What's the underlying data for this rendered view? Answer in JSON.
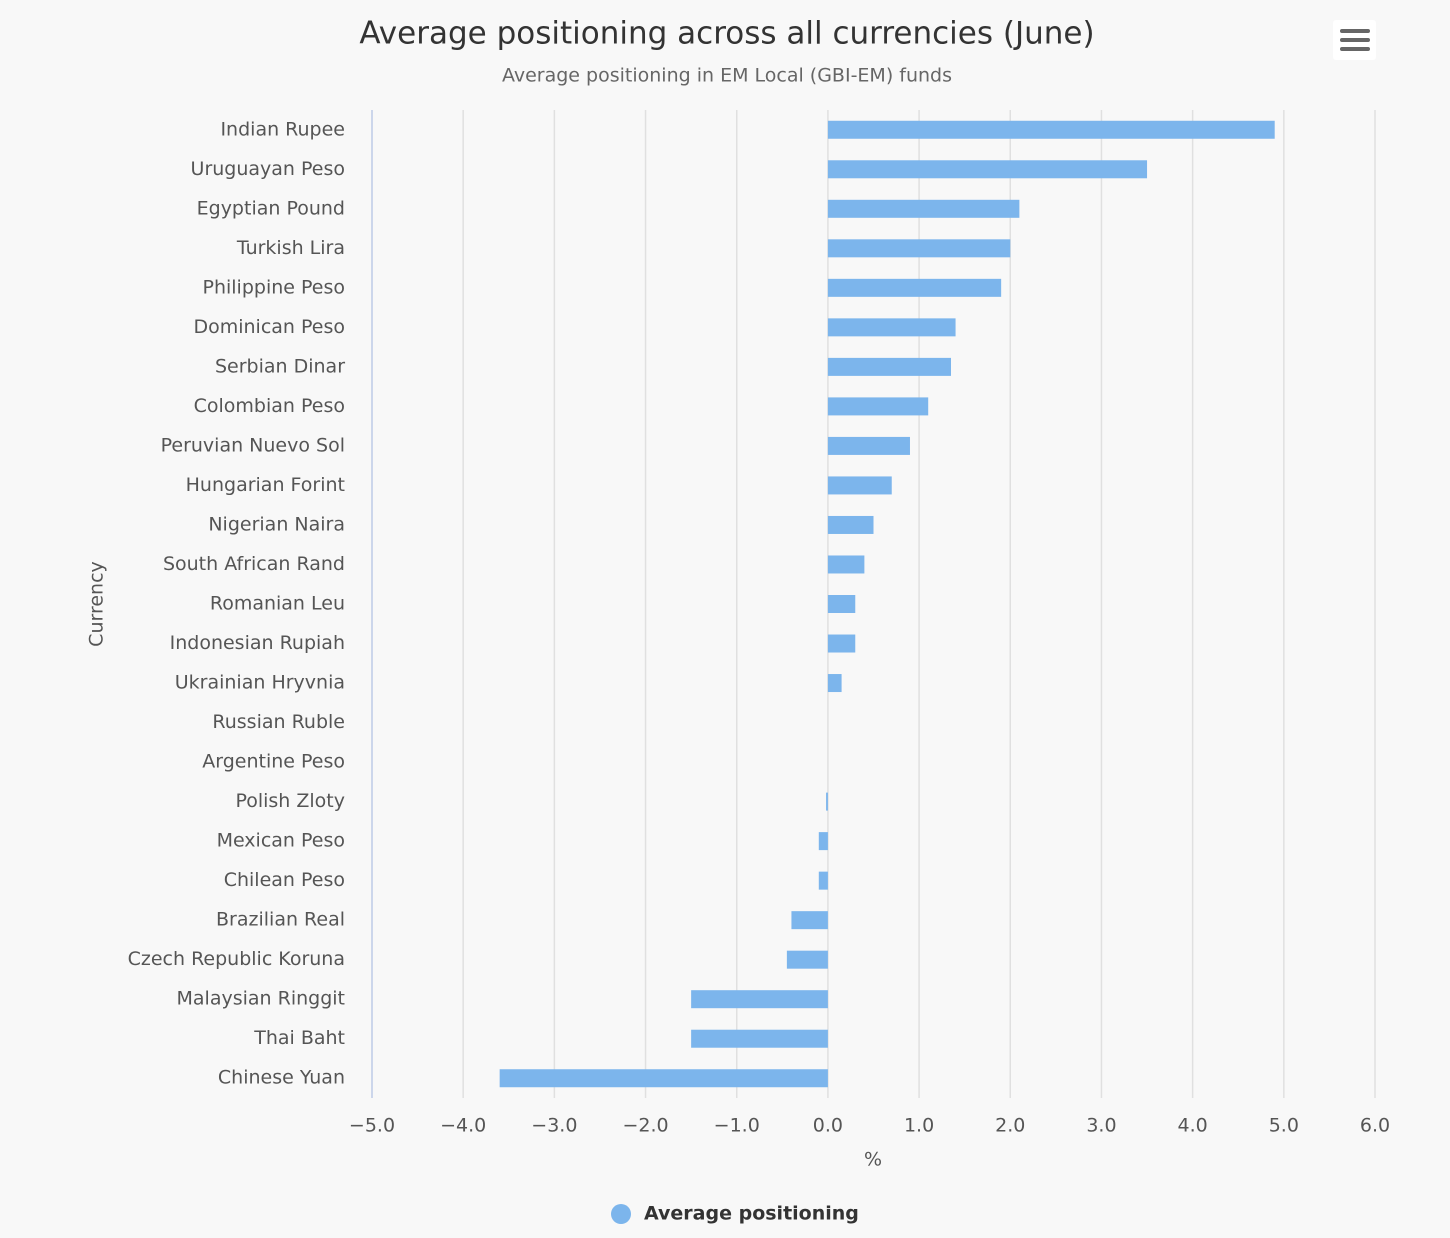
{
  "chart_data": {
    "type": "bar",
    "orientation": "horizontal",
    "title": "Average positioning across all currencies (June)",
    "subtitle": "Average positioning in EM Local (GBI-EM) funds",
    "x_label": "%",
    "y_label": "Currency",
    "categories": [
      "Indian Rupee",
      "Uruguayan Peso",
      "Egyptian Pound",
      "Turkish Lira",
      "Philippine Peso",
      "Dominican Peso",
      "Serbian Dinar",
      "Colombian Peso",
      "Peruvian Nuevo Sol",
      "Hungarian Forint",
      "Nigerian Naira",
      "South African Rand",
      "Romanian Leu",
      "Indonesian Rupiah",
      "Ukrainian Hryvnia",
      "Russian Ruble",
      "Argentine Peso",
      "Polish Zloty",
      "Mexican Peso",
      "Chilean Peso",
      "Brazilian Real",
      "Czech Republic Koruna",
      "Malaysian Ringgit",
      "Thai Baht",
      "Chinese Yuan"
    ],
    "series": [
      {
        "name": "Average positioning",
        "color": "#7cb5ec",
        "values": [
          4.9,
          3.5,
          2.1,
          2.0,
          1.9,
          1.4,
          1.35,
          1.1,
          0.9,
          0.7,
          0.5,
          0.4,
          0.3,
          0.3,
          0.15,
          0,
          0,
          -0.02,
          -0.1,
          -0.1,
          -0.4,
          -0.45,
          -1.5,
          -1.5,
          -3.6
        ]
      }
    ],
    "xlim": [
      -5,
      6
    ],
    "xticks": [
      {
        "value": -5,
        "label": "−5.0"
      },
      {
        "value": -4,
        "label": "−4.0"
      },
      {
        "value": -3,
        "label": "−3.0"
      },
      {
        "value": -2,
        "label": "−2.0"
      },
      {
        "value": -1,
        "label": "−1.0"
      },
      {
        "value": 0,
        "label": "0.0"
      },
      {
        "value": 1,
        "label": "1.0"
      },
      {
        "value": 2,
        "label": "2.0"
      },
      {
        "value": 3,
        "label": "3.0"
      },
      {
        "value": 4,
        "label": "4.0"
      },
      {
        "value": 5,
        "label": "5.0"
      },
      {
        "value": 6,
        "label": "6.0"
      }
    ],
    "grid": true,
    "legend": "bottom"
  }
}
